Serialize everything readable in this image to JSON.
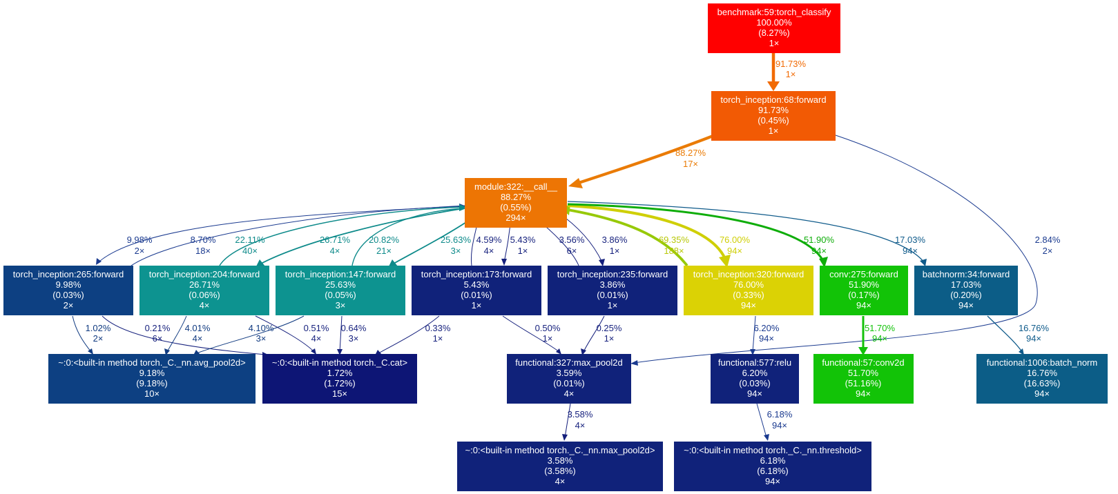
{
  "colors": {
    "red": "#ff0000",
    "orange_dark": "#f25a04",
    "orange": "#ed7504",
    "teal": "#0d9390",
    "navy": "#0d4082",
    "indigo": "#10227a",
    "deep_indigo": "#0d1575",
    "yellow": "#dbd205",
    "green": "#12c307",
    "steel_blue": "#0c5d87",
    "edge_orange": "#f16a04",
    "edge_orange2": "#ea7b05",
    "edge_teal": "#0d8a8a",
    "edge_navy": "#103a80",
    "edge_indigo": "#141f7c",
    "edge_yellow": "#cfcf06",
    "edge_lime": "#97c908",
    "edge_green": "#0fad0a",
    "edge_steel": "#0e5a8a",
    "edge_green2": "#13c20a",
    "edge_blue": "#1a3a8f"
  },
  "nodes": {
    "benchmark": {
      "name": "benchmark:59:torch_classify",
      "total": "100.00%",
      "self": "(8.27%)",
      "calls": "1×"
    },
    "incep68": {
      "name": "torch_inception:68:forward",
      "total": "91.73%",
      "self": "(0.45%)",
      "calls": "1×"
    },
    "module322": {
      "name": "module:322:__call__",
      "total": "88.27%",
      "self": "(0.55%)",
      "calls": "294×"
    },
    "incep265": {
      "name": "torch_inception:265:forward",
      "total": "9.98%",
      "self": "(0.03%)",
      "calls": "2×"
    },
    "incep204": {
      "name": "torch_inception:204:forward",
      "total": "26.71%",
      "self": "(0.06%)",
      "calls": "4×"
    },
    "incep147": {
      "name": "torch_inception:147:forward",
      "total": "25.63%",
      "self": "(0.05%)",
      "calls": "3×"
    },
    "incep173": {
      "name": "torch_inception:173:forward",
      "total": "5.43%",
      "self": "(0.01%)",
      "calls": "1×"
    },
    "incep235": {
      "name": "torch_inception:235:forward",
      "total": "3.86%",
      "self": "(0.01%)",
      "calls": "1×"
    },
    "incep320": {
      "name": "torch_inception:320:forward",
      "total": "76.00%",
      "self": "(0.33%)",
      "calls": "94×"
    },
    "conv275": {
      "name": "conv:275:forward",
      "total": "51.90%",
      "self": "(0.17%)",
      "calls": "94×"
    },
    "bn34": {
      "name": "batchnorm:34:forward",
      "total": "17.03%",
      "self": "(0.20%)",
      "calls": "94×"
    },
    "avgpool": {
      "name": "~:0:<built-in method torch._C._nn.avg_pool2d>",
      "total": "9.18%",
      "self": "(9.18%)",
      "calls": "10×"
    },
    "cat": {
      "name": "~:0:<built-in method torch._C.cat>",
      "total": "1.72%",
      "self": "(1.72%)",
      "calls": "15×"
    },
    "maxpool_f": {
      "name": "functional:327:max_pool2d",
      "total": "3.59%",
      "self": "(0.01%)",
      "calls": "4×"
    },
    "relu": {
      "name": "functional:577:relu",
      "total": "6.20%",
      "self": "(0.03%)",
      "calls": "94×"
    },
    "conv2d": {
      "name": "functional:57:conv2d",
      "total": "51.70%",
      "self": "(51.16%)",
      "calls": "94×"
    },
    "bnf": {
      "name": "functional:1006:batch_norm",
      "total": "16.76%",
      "self": "(16.63%)",
      "calls": "94×"
    },
    "maxpool_b": {
      "name": "~:0:<built-in method torch._C._nn.max_pool2d>",
      "total": "3.58%",
      "self": "(3.58%)",
      "calls": "4×"
    },
    "threshold": {
      "name": "~:0:<built-in method torch._C._nn.threshold>",
      "total": "6.18%",
      "self": "(6.18%)",
      "calls": "94×"
    }
  },
  "edges": {
    "b_68": {
      "pct": "91.73%",
      "calls": "1×"
    },
    "68_322": {
      "pct": "88.27%",
      "calls": "17×"
    },
    "322_265": {
      "pct": "9.98%",
      "calls": "2×"
    },
    "265_322": {
      "pct": "8.70%",
      "calls": "18×"
    },
    "204_322": {
      "pct": "22.11%",
      "calls": "40×"
    },
    "322_204": {
      "pct": "26.71%",
      "calls": "4×"
    },
    "147_322": {
      "pct": "20.82%",
      "calls": "21×"
    },
    "322_147": {
      "pct": "25.63%",
      "calls": "3×"
    },
    "173_322": {
      "pct": "4.59%",
      "calls": "4×"
    },
    "322_173": {
      "pct": "5.43%",
      "calls": "1×"
    },
    "235_322": {
      "pct": "3.56%",
      "calls": "6×"
    },
    "322_235": {
      "pct": "3.86%",
      "calls": "1×"
    },
    "320_322": {
      "pct": "69.35%",
      "calls": "188×"
    },
    "322_320": {
      "pct": "76.00%",
      "calls": "94×"
    },
    "322_conv": {
      "pct": "51.90%",
      "calls": "94×"
    },
    "322_bn": {
      "pct": "17.03%",
      "calls": "94×"
    },
    "68_maxpool": {
      "pct": "2.84%",
      "calls": "2×"
    },
    "265_avg": {
      "pct": "1.02%",
      "calls": "2×"
    },
    "265_cat": {
      "pct": "0.21%",
      "calls": "6×"
    },
    "204_avg": {
      "pct": "4.01%",
      "calls": "4×"
    },
    "147_avg": {
      "pct": "4.10%",
      "calls": "3×"
    },
    "204_cat": {
      "pct": "0.51%",
      "calls": "4×"
    },
    "147_cat": {
      "pct": "0.64%",
      "calls": "3×"
    },
    "173_cat": {
      "pct": "0.33%",
      "calls": "1×"
    },
    "173_maxpool": {
      "pct": "0.50%",
      "calls": "1×"
    },
    "235_maxpool": {
      "pct": "0.25%",
      "calls": "1×"
    },
    "320_relu": {
      "pct": "6.20%",
      "calls": "94×"
    },
    "conv_conv2d": {
      "pct": "51.70%",
      "calls": "94×"
    },
    "bn_bnf": {
      "pct": "16.76%",
      "calls": "94×"
    },
    "maxpool_b": {
      "pct": "3.58%",
      "calls": "4×"
    },
    "relu_thr": {
      "pct": "6.18%",
      "calls": "94×"
    }
  }
}
